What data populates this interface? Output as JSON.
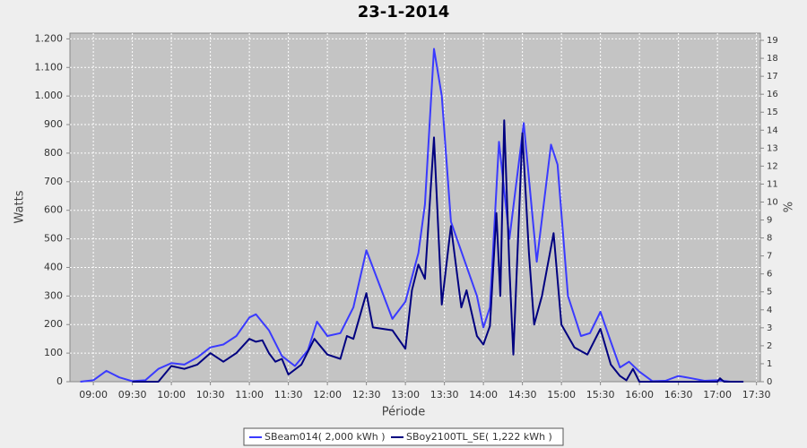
{
  "chart_data": {
    "type": "line",
    "title": "23-1-2014",
    "x_label": "Période",
    "y_label": "Watts",
    "y2_label": "%",
    "xlim": [
      "08:42",
      "17:33"
    ],
    "xticks": [
      "09:00",
      "09:30",
      "10:00",
      "10:30",
      "11:00",
      "11:30",
      "12:00",
      "12:30",
      "13:00",
      "13:30",
      "14:00",
      "14:30",
      "15:00",
      "15:30",
      "16:00",
      "16:30",
      "17:00",
      "17:30"
    ],
    "ylim": [
      0,
      1220
    ],
    "yticks": [
      0,
      100,
      200,
      300,
      400,
      500,
      600,
      700,
      800,
      900,
      {
        "value": 1000,
        "label": "1.000"
      },
      {
        "value": 1100,
        "label": "1.100"
      },
      {
        "value": 1200,
        "label": "1.200"
      }
    ],
    "y2lim": [
      0,
      19.4
    ],
    "y2ticks": [
      0,
      1,
      2,
      3,
      4,
      5,
      6,
      7,
      8,
      9,
      10,
      11,
      12,
      13,
      14,
      15,
      16,
      17,
      18,
      19
    ],
    "grid": true,
    "series": [
      {
        "name": "SBeam014( 2,000 kWh )",
        "color": "#3a3aff",
        "x": [
          "08:50",
          "09:00",
          "09:10",
          "09:20",
          "09:30",
          "09:40",
          "09:50",
          "10:00",
          "10:10",
          "10:20",
          "10:30",
          "10:40",
          "10:50",
          "11:00",
          "11:05",
          "11:15",
          "11:25",
          "11:35",
          "11:45",
          "11:52",
          "12:00",
          "12:10",
          "12:20",
          "12:30",
          "12:40",
          "12:50",
          "13:00",
          "13:10",
          "13:15",
          "13:22",
          "13:28",
          "13:35",
          "13:45",
          "13:55",
          "14:00",
          "14:05",
          "14:12",
          "14:20",
          "14:31",
          "14:41",
          "14:52",
          "14:57",
          "15:05",
          "15:15",
          "15:22",
          "15:30",
          "15:38",
          "15:45",
          "15:52",
          "16:00",
          "16:10",
          "16:20",
          "16:30",
          "16:40",
          "16:50",
          "17:00",
          "17:10",
          "17:20"
        ],
        "values": [
          0,
          5,
          38,
          15,
          2,
          5,
          45,
          65,
          60,
          85,
          120,
          130,
          160,
          225,
          236,
          180,
          90,
          55,
          110,
          210,
          160,
          170,
          260,
          460,
          340,
          220,
          280,
          450,
          620,
          1165,
          1000,
          560,
          430,
          300,
          190,
          260,
          840,
          500,
          905,
          420,
          830,
          760,
          300,
          160,
          170,
          245,
          140,
          50,
          70,
          35,
          2,
          3,
          20,
          12,
          3,
          5,
          0,
          0
        ]
      },
      {
        "name": "SBoy2100TL_SE( 1,222 kWh )",
        "color": "#000080",
        "x": [
          "09:30",
          "09:40",
          "09:50",
          "10:00",
          "10:10",
          "10:20",
          "10:30",
          "10:40",
          "10:50",
          "11:00",
          "11:05",
          "11:10",
          "11:15",
          "11:20",
          "11:25",
          "11:30",
          "11:40",
          "11:50",
          "12:00",
          "12:10",
          "12:15",
          "12:20",
          "12:30",
          "12:35",
          "12:50",
          "13:00",
          "13:05",
          "13:10",
          "13:15",
          "13:22",
          "13:28",
          "13:35",
          "13:43",
          "13:47",
          "13:55",
          "14:00",
          "14:05",
          "14:10",
          "14:13",
          "14:16",
          "14:20",
          "14:23",
          "14:30",
          "14:35",
          "14:39",
          "14:45",
          "14:54",
          "15:00",
          "15:10",
          "15:20",
          "15:30",
          "15:38",
          "15:45",
          "15:50",
          "15:55",
          "16:00",
          "16:10",
          "17:00",
          "17:02",
          "17:05",
          "17:20"
        ],
        "values": [
          0,
          0,
          0,
          55,
          45,
          60,
          100,
          70,
          100,
          150,
          140,
          145,
          100,
          70,
          80,
          25,
          60,
          150,
          95,
          80,
          160,
          150,
          310,
          190,
          180,
          115,
          320,
          410,
          360,
          855,
          270,
          545,
          260,
          320,
          160,
          130,
          195,
          590,
          300,
          915,
          400,
          95,
          870,
          450,
          200,
          300,
          520,
          200,
          120,
          95,
          185,
          60,
          20,
          5,
          45,
          0,
          0,
          0,
          12,
          0,
          0
        ]
      }
    ]
  }
}
